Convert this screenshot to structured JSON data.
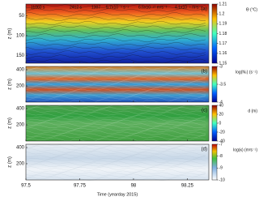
{
  "chart_data": [
    {
      "type": "heatmap",
      "panel_label": "(a)",
      "ylabel": "z (m)",
      "ylim": [
        170,
        20
      ],
      "yticks": [
        50,
        100,
        150
      ],
      "colorbar": {
        "label": "Θ (°C)",
        "clim": [
          1.15,
          1.21
        ],
        "ticks": [
          1.15,
          1.16,
          1.17,
          1.18,
          1.19,
          1.2,
          1.21
        ]
      },
      "annotations": [
        {
          "text": "11060 s",
          "color": "#e040e0"
        },
        {
          "text": "2412 s",
          "color": "#40d040"
        },
        {
          "text": "1307",
          "color": "#30d0e0"
        },
        {
          "text": "5.7x10⁻⁴ s⁻¹",
          "color": "#2040c0"
        },
        {
          "text": "6.6x10⁻¹⁰ m²s⁻³",
          "color": "#e03030"
        },
        {
          "text": "4.1x10⁻⁵ m²s⁻¹",
          "color": "#111111"
        }
      ]
    },
    {
      "type": "heatmap",
      "panel_label": "(b)",
      "ylabel": "z (m)",
      "ylim": [
        0,
        440
      ],
      "yticks": [
        200,
        400
      ],
      "colorbar": {
        "label": "log(Nₛ) (s⁻¹)",
        "clim": [
          -4,
          -3
        ],
        "ticks": [
          -4,
          -3.5,
          -3
        ]
      }
    },
    {
      "type": "heatmap",
      "panel_label": "(c)",
      "ylabel": "z (m)",
      "ylim": [
        0,
        440
      ],
      "yticks": [
        200,
        400
      ],
      "colorbar": {
        "label": "d (m)",
        "clim": [
          -40,
          40
        ],
        "ticks": [
          -40,
          -20,
          0,
          20,
          40
        ]
      }
    },
    {
      "type": "heatmap",
      "panel_label": "(d)",
      "ylabel": "z (m)",
      "ylim": [
        0,
        440
      ],
      "yticks": [
        200,
        400
      ],
      "colorbar": {
        "label": "log(κ) (m²s⁻¹)",
        "clim": [
          -10,
          -7
        ],
        "ticks": [
          -10,
          -9,
          -8,
          -7
        ]
      },
      "xlabel": "Time (yearday 2015)",
      "xlim": [
        97.5,
        98.35
      ],
      "xticks": [
        97.5,
        97.75,
        98,
        98.25
      ]
    }
  ]
}
